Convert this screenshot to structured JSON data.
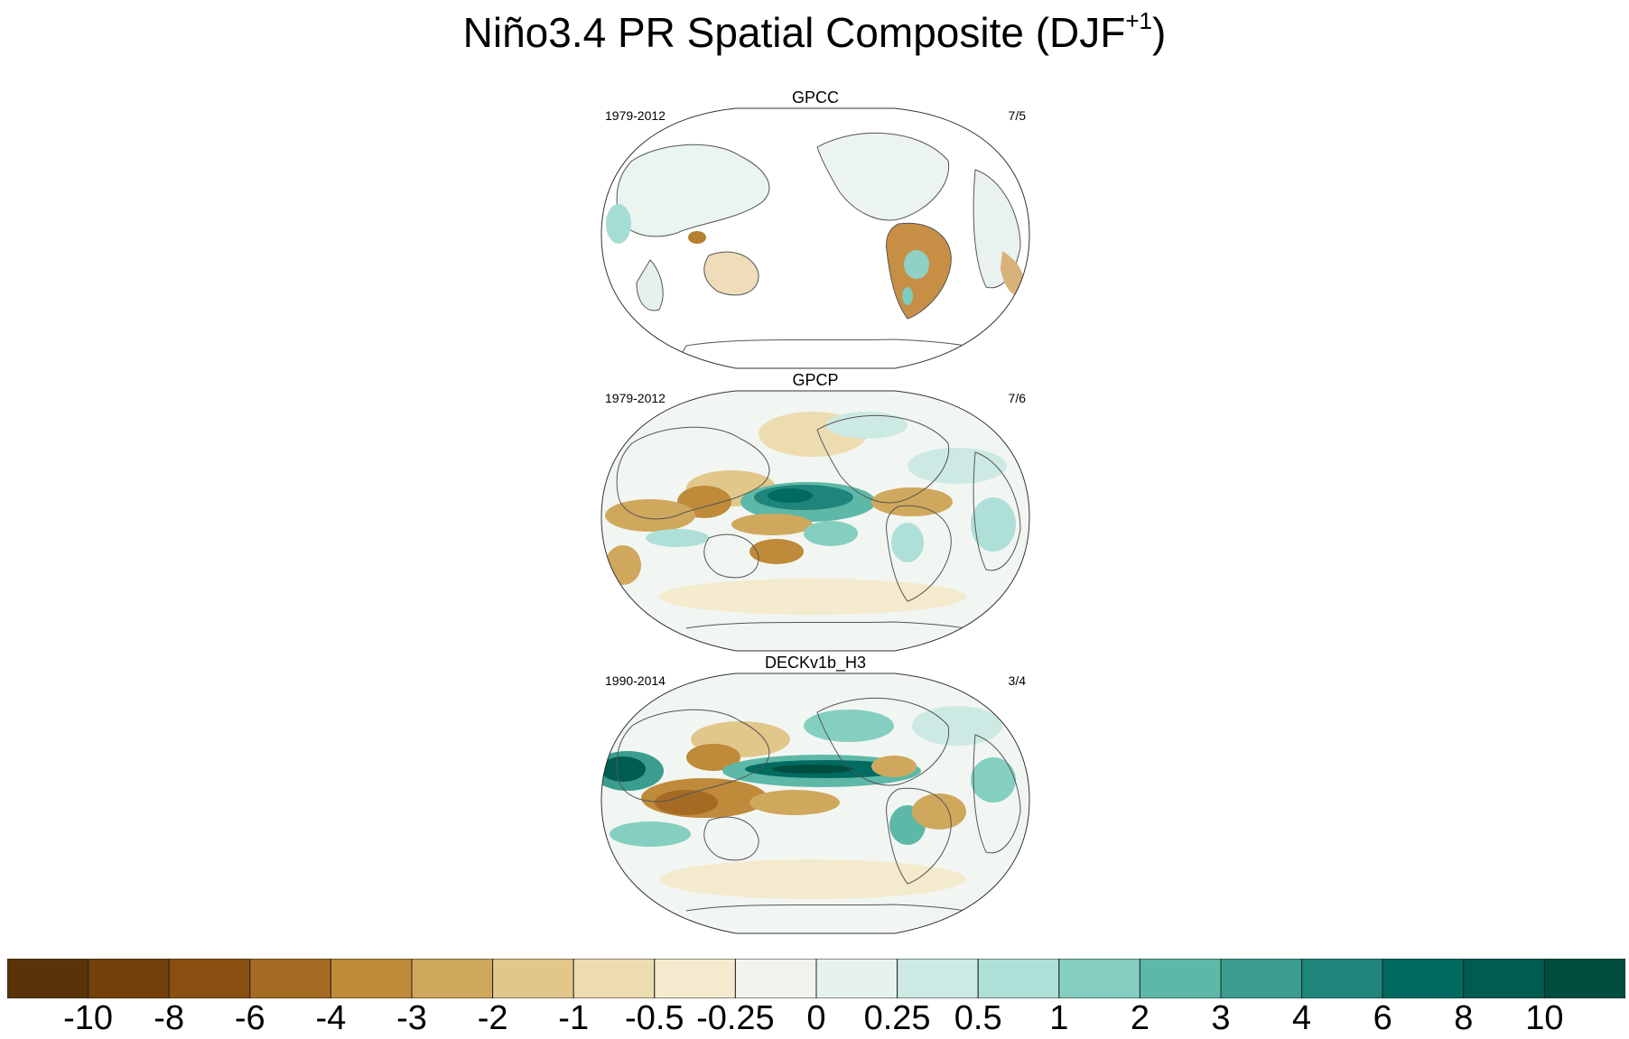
{
  "chart_data": {
    "type": "heatmap",
    "title_main": "Niño3.4 PR Spatial Composite (DJF",
    "title_sup": "+1",
    "title_end": ")",
    "panels": [
      {
        "name": "GPCC",
        "period": "1979-2012",
        "ratio": "7/5"
      },
      {
        "name": "GPCP",
        "period": "1979-2012",
        "ratio": "7/6"
      },
      {
        "name": "DECKv1b_H3",
        "period": "1990-2014",
        "ratio": "3/4"
      }
    ],
    "colorbar": {
      "labels": [
        "-10",
        "-8",
        "-6",
        "-4",
        "-3",
        "-2",
        "-1",
        "-0.5",
        "-0.25",
        "0",
        "0.25",
        "0.5",
        "1",
        "2",
        "3",
        "4",
        "6",
        "8",
        "10"
      ],
      "colors": [
        "#5a3409",
        "#734009",
        "#8a4f10",
        "#a56b23",
        "#bf8a3a",
        "#d0a85d",
        "#e2c78b",
        "#ecdcb0",
        "#f4eacd",
        "#f4f2ec",
        "#e6f2f0",
        "#cde9e4",
        "#afe0d8",
        "#85cfc1",
        "#5db8a8",
        "#3a9d90",
        "#1f847a",
        "#016b62",
        "#005c50",
        "#004d40"
      ]
    }
  }
}
